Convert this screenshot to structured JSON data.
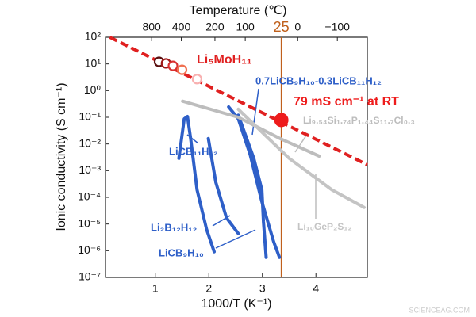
{
  "chart_data": {
    "type": "line",
    "title": "Temperature (℃)",
    "xlabel": "1000/T (K⁻¹)",
    "ylabel": "Ionic conductivity (S cm⁻¹)",
    "xlim": [
      0.07,
      4.96
    ],
    "xticks": [
      1,
      2,
      3,
      4
    ],
    "ylim": [
      1e-07,
      100
    ],
    "ylog": true,
    "yticks": [
      {
        "value": 1e-07,
        "label": "10⁻⁷"
      },
      {
        "value": 1e-06,
        "label": "10⁻⁶"
      },
      {
        "value": 1e-05,
        "label": "10⁻⁵"
      },
      {
        "value": 0.0001,
        "label": "10⁻⁴"
      },
      {
        "value": 0.001,
        "label": "10⁻³"
      },
      {
        "value": 0.01,
        "label": "10⁻²"
      },
      {
        "value": 0.1,
        "label": "10⁻¹"
      },
      {
        "value": 1,
        "label": "10⁰"
      },
      {
        "value": 10,
        "label": "10¹"
      },
      {
        "value": 100,
        "label": "10²"
      }
    ],
    "x2ticks": [
      {
        "value": 0.932,
        "label": "800"
      },
      {
        "value": 1.486,
        "label": "400"
      },
      {
        "value": 2.114,
        "label": "200"
      },
      {
        "value": 2.68,
        "label": "100"
      },
      {
        "value": 3.66,
        "label": "0"
      },
      {
        "value": 4.4,
        "label": "−100"
      }
    ],
    "rt": {
      "value": 3.354,
      "label": "25",
      "color": "#c0601c"
    },
    "highlight": {
      "x": 3.354,
      "value": 0.079,
      "label": "79 mS cm⁻¹ at RT",
      "color": "#ee1c1c"
    },
    "fit": {
      "x": [
        0.15,
        4.96
      ],
      "values": [
        100,
        0.00166
      ],
      "color": "#e02020"
    },
    "series": [
      {
        "name": "Li₅MoH₁₁",
        "color": "#e02020",
        "markers": true,
        "marker_colors": [
          "#5a1010",
          "#a01818",
          "#d83030",
          "#f07050",
          "#f8b0b0"
        ],
        "x": [
          1.07,
          1.2,
          1.33,
          1.5,
          1.78
        ],
        "values": [
          12,
          10.5,
          8.5,
          6,
          2.7
        ]
      },
      {
        "name": "0.7LiCB₉H₁₀-0.3LiCB₁₁H₁₂",
        "color": "#2e5fc8",
        "x": [
          2.37,
          2.55,
          2.77,
          2.99,
          3.21,
          3.32
        ],
        "values": [
          0.245,
          0.087,
          0.0041,
          6.8e-05,
          2.2e-06,
          5.6e-07
        ]
      },
      {
        "name": "LiCB₁₁H₁₂",
        "color": "#2e5fc8",
        "x": [
          1.44,
          1.54,
          1.6,
          1.66,
          1.78,
          1.96,
          2.1
        ],
        "values": [
          0.0029,
          0.087,
          0.107,
          0.016,
          0.00019,
          6.2e-06,
          9.1e-07
        ]
      },
      {
        "name": "Li₂B₁₂H₁₂",
        "color": "#2e5fc8",
        "x": [
          1.99,
          2.13,
          2.33,
          2.55
        ],
        "values": [
          0.016,
          0.00037,
          1.7e-05,
          4.4e-06
        ]
      },
      {
        "name": "LiCB₉H₁₀",
        "color": "#2e5fc8",
        "x": [
          2.55,
          2.84,
          2.99,
          3.02,
          3.07
        ],
        "values": [
          0.12,
          0.0029,
          0.00019,
          1.2e-05,
          5.6e-07
        ]
      },
      {
        "name": "Li₉.₅₄Si₁.₇₄P₁.₄₄S₁₁.₇Cl₀.₃",
        "color": "#bdbdbd",
        "x": [
          1.51,
          2.55,
          3.33,
          4.06
        ],
        "values": [
          0.4,
          0.1,
          0.016,
          0.0035
        ]
      },
      {
        "name": "Li₁₀GeP₂S₁₂",
        "color": "#c4c4c4",
        "x": [
          2.55,
          3.5,
          4.3,
          4.9
        ],
        "values": [
          0.2,
          0.0029,
          0.00019,
          4.2e-05
        ]
      }
    ],
    "watermark": "SCIENCEAG.COM"
  }
}
